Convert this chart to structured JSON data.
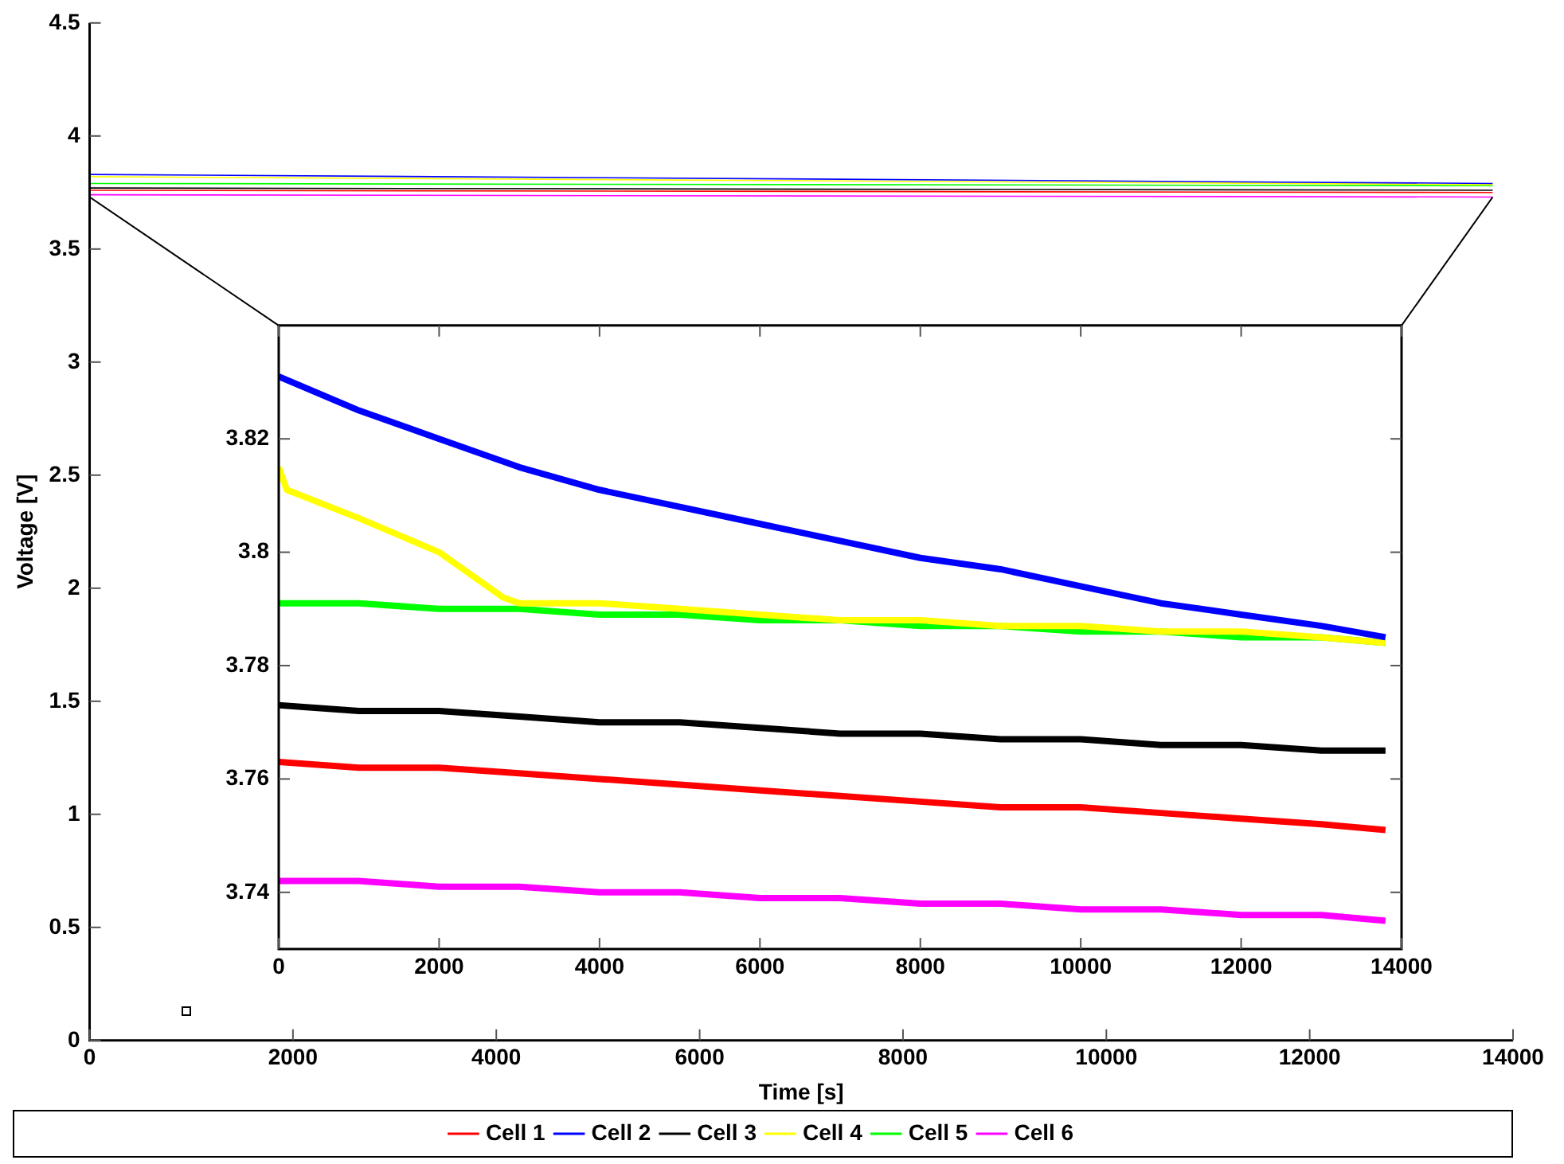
{
  "chart_data": [
    {
      "type": "line",
      "xlabel": "Time [s]",
      "ylabel": "Voltage [V]",
      "legend": "bottom",
      "xlim": [
        0,
        14000
      ],
      "xticks": [
        0,
        2000,
        4000,
        6000,
        8000,
        10000,
        12000,
        14000
      ],
      "ylim": [
        0,
        4.5
      ],
      "yticks": [
        0,
        0.5,
        1,
        1.5,
        2,
        2.5,
        3,
        3.5,
        4,
        4.5
      ],
      "x": [
        0,
        13800
      ],
      "series": [
        {
          "name": "Cell 1",
          "color": "#ff0000",
          "values": [
            3.76,
            3.75
          ]
        },
        {
          "name": "Cell 2",
          "color": "#0000ff",
          "values": [
            3.83,
            3.79
          ]
        },
        {
          "name": "Cell 3",
          "color": "#000000",
          "values": [
            3.77,
            3.76
          ]
        },
        {
          "name": "Cell 4",
          "color": "#ffff00",
          "values": [
            3.82,
            3.785
          ]
        },
        {
          "name": "Cell 5",
          "color": "#00ff00",
          "values": [
            3.79,
            3.78
          ]
        },
        {
          "name": "Cell 6",
          "color": "#ff00ff",
          "values": [
            3.74,
            3.73
          ]
        }
      ]
    },
    {
      "type": "line",
      "xlim": [
        0,
        14000
      ],
      "xticks": [
        0,
        2000,
        4000,
        6000,
        8000,
        10000,
        12000,
        14000
      ],
      "ylim": [
        3.73,
        3.84
      ],
      "yticks": [
        3.74,
        3.76,
        3.78,
        3.8,
        3.82
      ],
      "x": [
        0,
        1000,
        2000,
        3000,
        4000,
        5000,
        6000,
        7000,
        8000,
        9000,
        10000,
        11000,
        12000,
        13000,
        13800
      ],
      "series": [
        {
          "color": "#ff0000",
          "values": [
            3.763,
            3.762,
            3.762,
            3.761,
            3.76,
            3.759,
            3.758,
            3.757,
            3.756,
            3.755,
            3.755,
            3.754,
            3.753,
            3.752,
            3.751
          ]
        },
        {
          "color": "#0000ff",
          "values": [
            3.831,
            3.825,
            3.82,
            3.815,
            3.811,
            3.808,
            3.805,
            3.802,
            3.799,
            3.797,
            3.794,
            3.791,
            3.789,
            3.787,
            3.785
          ]
        },
        {
          "color": "#000000",
          "values": [
            3.773,
            3.772,
            3.772,
            3.771,
            3.77,
            3.77,
            3.769,
            3.768,
            3.768,
            3.767,
            3.767,
            3.766,
            3.766,
            3.765,
            3.765
          ]
        },
        {
          "color": "#ffff00",
          "x": [
            0,
            100,
            1000,
            2000,
            2800,
            3000,
            4000,
            5000,
            6000,
            7000,
            8000,
            9000,
            10000,
            11000,
            12000,
            13000,
            13800
          ],
          "values": [
            3.815,
            3.811,
            3.806,
            3.8,
            3.792,
            3.791,
            3.791,
            3.79,
            3.789,
            3.788,
            3.788,
            3.787,
            3.787,
            3.786,
            3.786,
            3.785,
            3.784
          ]
        },
        {
          "color": "#00ff00",
          "values": [
            3.791,
            3.791,
            3.79,
            3.79,
            3.789,
            3.789,
            3.788,
            3.788,
            3.787,
            3.787,
            3.786,
            3.786,
            3.785,
            3.785,
            3.784
          ]
        },
        {
          "color": "#ff00ff",
          "values": [
            3.742,
            3.742,
            3.741,
            3.741,
            3.74,
            3.74,
            3.739,
            3.739,
            3.738,
            3.738,
            3.737,
            3.737,
            3.736,
            3.736,
            3.735
          ]
        }
      ]
    }
  ]
}
